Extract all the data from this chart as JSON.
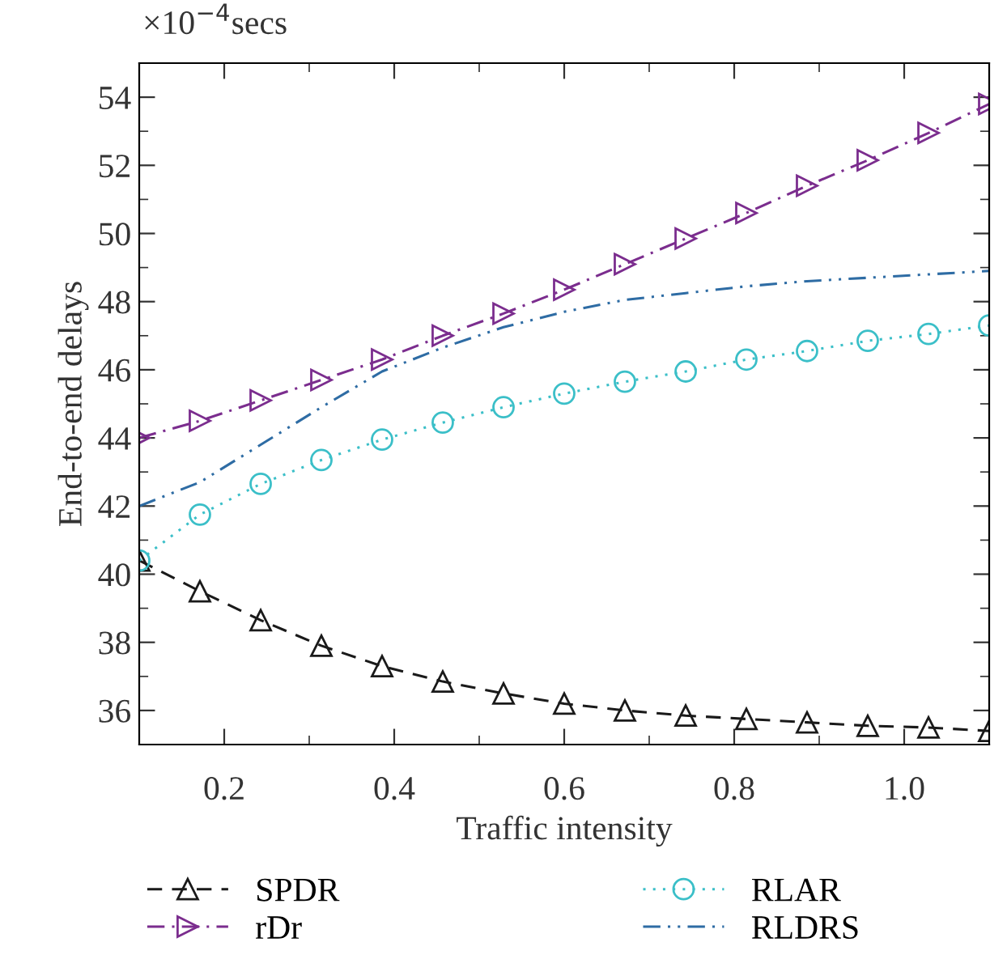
{
  "chart_data": {
    "type": "line",
    "xlabel": "Traffic intensity",
    "ylabel": "End-to-end delays",
    "annotations": [
      "×10$^{−4}$secs"
    ],
    "x": [
      0.1,
      0.1714,
      0.2429,
      0.3143,
      0.3857,
      0.4571,
      0.5286,
      0.6,
      0.6714,
      0.7429,
      0.8143,
      0.8857,
      0.9571,
      1.0286,
      1.1
    ],
    "series": [
      {
        "name": "SPDR",
        "color": "#1a1a1a",
        "marker": "triangle",
        "line_style": "dashed",
        "values": [
          40.4,
          39.5,
          38.65,
          37.9,
          37.3,
          36.85,
          36.5,
          36.2,
          36.0,
          35.85,
          35.75,
          35.65,
          35.55,
          35.5,
          35.4
        ]
      },
      {
        "name": "rDr",
        "color": "#7b2d8e",
        "marker": "triangle_right",
        "line_style": "dashdot",
        "values": [
          44.0,
          44.5,
          45.1,
          45.7,
          46.3,
          47.0,
          47.65,
          48.35,
          49.1,
          49.85,
          50.6,
          51.4,
          52.15,
          52.95,
          53.8
        ]
      },
      {
        "name": "RLAR",
        "color": "#3bbfc8",
        "marker": "circle",
        "line_style": "dotted",
        "values": [
          40.4,
          41.75,
          42.65,
          43.35,
          43.95,
          44.45,
          44.9,
          45.3,
          45.65,
          45.95,
          46.3,
          46.55,
          46.85,
          47.05,
          47.3
        ]
      },
      {
        "name": "RLDRS",
        "color": "#2e6ca4",
        "marker": "none",
        "line_style": "dashdotdot",
        "values": [
          42.0,
          42.7,
          43.8,
          44.9,
          45.95,
          46.65,
          47.25,
          47.7,
          48.05,
          48.25,
          48.45,
          48.6,
          48.7,
          48.8,
          48.9
        ]
      }
    ],
    "xlim": [
      0.1,
      1.1
    ],
    "xticks": [
      {
        "value": 0.2,
        "label": "0.2"
      },
      {
        "value": 0.4,
        "label": "0.4"
      },
      {
        "value": 0.6,
        "label": "0.6"
      },
      {
        "value": 0.8,
        "label": "0.8"
      },
      {
        "value": 1.0,
        "label": "1.0"
      }
    ],
    "ylim": [
      35,
      55
    ],
    "yticks": [
      36,
      38,
      40,
      42,
      44,
      46,
      48,
      50,
      52,
      54
    ],
    "grid": false,
    "legend": "bottom"
  }
}
